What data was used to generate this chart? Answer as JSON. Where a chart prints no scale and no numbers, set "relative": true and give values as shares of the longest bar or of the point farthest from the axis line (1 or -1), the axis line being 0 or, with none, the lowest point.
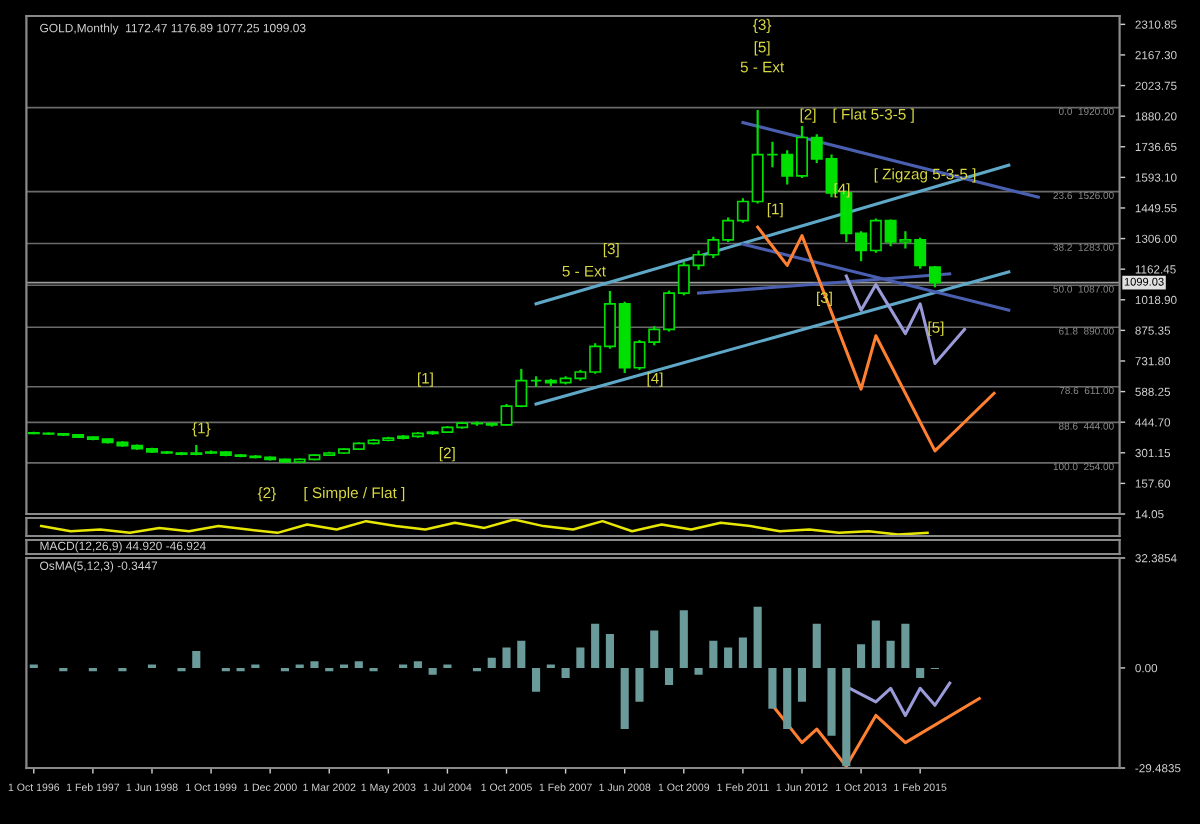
{
  "chart_data": [
    {
      "type": "candlestick",
      "title": "GOLD,Monthly  1172.47 1176.89 1077.25 1099.03",
      "color": "#00e000",
      "categories": [
        null,
        null,
        null,
        null,
        null,
        null,
        null,
        null,
        null,
        null,
        null,
        null,
        null,
        null,
        null,
        null,
        null,
        null,
        null,
        null,
        null,
        null,
        null,
        null,
        null,
        null,
        null,
        null,
        null,
        null,
        null,
        null,
        null,
        null,
        null,
        null,
        null,
        null,
        null,
        null,
        null,
        null,
        null,
        null,
        null,
        null,
        null,
        null,
        null,
        null,
        null,
        null,
        null,
        null,
        null,
        null,
        null,
        null,
        null,
        null,
        null,
        null,
        null,
        null,
        null,
        null,
        null,
        null,
        null,
        null,
        null,
        null,
        null,
        null
      ],
      "ohlc": [
        [
          395,
          400,
          388,
          392
        ],
        [
          392,
          396,
          386,
          390
        ],
        [
          390,
          394,
          380,
          385
        ],
        [
          385,
          388,
          370,
          375
        ],
        [
          375,
          378,
          360,
          365
        ],
        [
          365,
          368,
          345,
          350
        ],
        [
          350,
          355,
          330,
          335
        ],
        [
          335,
          340,
          315,
          320
        ],
        [
          320,
          325,
          300,
          305
        ],
        [
          305,
          310,
          295,
          300
        ],
        [
          300,
          305,
          290,
          295
        ],
        [
          295,
          338,
          290,
          300
        ],
        [
          300,
          312,
          295,
          305
        ],
        [
          305,
          308,
          285,
          290
        ],
        [
          290,
          295,
          280,
          285
        ],
        [
          285,
          290,
          275,
          280
        ],
        [
          280,
          284,
          265,
          270
        ],
        [
          270,
          274,
          254,
          258
        ],
        [
          258,
          275,
          255,
          270
        ],
        [
          270,
          294,
          266,
          290
        ],
        [
          290,
          306,
          286,
          300
        ],
        [
          300,
          322,
          296,
          318
        ],
        [
          318,
          350,
          314,
          345
        ],
        [
          345,
          366,
          340,
          360
        ],
        [
          360,
          376,
          355,
          370
        ],
        [
          370,
          384,
          364,
          378
        ],
        [
          378,
          398,
          372,
          392
        ],
        [
          392,
          404,
          386,
          398
        ],
        [
          398,
          426,
          394,
          420
        ],
        [
          420,
          446,
          414,
          440
        ],
        [
          440,
          448,
          428,
          438
        ],
        [
          438,
          442,
          424,
          432
        ],
        [
          432,
          530,
          428,
          520
        ],
        [
          520,
          694,
          515,
          640
        ],
        [
          640,
          660,
          610,
          640
        ],
        [
          640,
          648,
          615,
          630
        ],
        [
          630,
          660,
          622,
          650
        ],
        [
          650,
          690,
          640,
          680
        ],
        [
          680,
          815,
          672,
          800
        ],
        [
          800,
          1060,
          790,
          1000
        ],
        [
          1000,
          1010,
          675,
          700
        ],
        [
          700,
          830,
          690,
          820
        ],
        [
          820,
          895,
          805,
          880
        ],
        [
          880,
          1062,
          870,
          1050
        ],
        [
          1050,
          1195,
          1040,
          1180
        ],
        [
          1180,
          1250,
          1160,
          1230
        ],
        [
          1230,
          1315,
          1215,
          1300
        ],
        [
          1300,
          1405,
          1290,
          1390
        ],
        [
          1390,
          1495,
          1380,
          1480
        ],
        [
          1480,
          1909,
          1470,
          1700
        ],
        [
          1700,
          1760,
          1640,
          1700
        ],
        [
          1700,
          1720,
          1560,
          1600
        ],
        [
          1600,
          1834,
          1590,
          1780
        ],
        [
          1780,
          1795,
          1660,
          1680
        ],
        [
          1680,
          1700,
          1500,
          1520
        ],
        [
          1520,
          1530,
          1290,
          1330
        ],
        [
          1330,
          1340,
          1200,
          1250
        ],
        [
          1250,
          1400,
          1240,
          1390
        ],
        [
          1390,
          1395,
          1270,
          1290
        ],
        [
          1290,
          1340,
          1260,
          1300
        ],
        [
          1300,
          1310,
          1165,
          1180
        ],
        [
          1172.47,
          1176.89,
          1077.25,
          1099.03
        ],
        null,
        null,
        null,
        null,
        null,
        null,
        null,
        null,
        null,
        null,
        null,
        null
      ],
      "series": [
        {
          "type": "line",
          "color": "#5fa8c8",
          "values": [
            null,
            null,
            null,
            null,
            null,
            null,
            null,
            null,
            null,
            null,
            null,
            null,
            null,
            null,
            null,
            null,
            null,
            null,
            null,
            null,
            null,
            null,
            null,
            null,
            null,
            null,
            null,
            null,
            null,
            null,
            null,
            null,
            null,
            null,
            1000,
            null,
            null,
            null,
            null,
            null,
            null,
            null,
            null,
            null,
            null,
            null,
            null,
            null,
            null,
            null,
            null,
            null,
            null,
            null,
            null,
            null,
            null,
            null,
            null,
            null,
            null,
            null,
            null,
            null,
            null,
            null,
            1650,
            null,
            null,
            null,
            null,
            null,
            null,
            null
          ]
        },
        {
          "type": "line",
          "color": "#5fa8c8",
          "values": [
            null,
            null,
            null,
            null,
            null,
            null,
            null,
            null,
            null,
            null,
            null,
            null,
            null,
            null,
            null,
            null,
            null,
            null,
            null,
            null,
            null,
            null,
            null,
            null,
            null,
            null,
            null,
            null,
            null,
            null,
            null,
            null,
            null,
            null,
            530,
            null,
            null,
            null,
            null,
            null,
            null,
            null,
            null,
            null,
            null,
            null,
            null,
            null,
            null,
            null,
            null,
            null,
            null,
            null,
            null,
            null,
            null,
            null,
            null,
            null,
            null,
            null,
            null,
            null,
            null,
            null,
            1150,
            null,
            null,
            null,
            null,
            null,
            null,
            null
          ]
        },
        {
          "type": "line",
          "color": "#4a5fb0",
          "values": [
            null,
            null,
            null,
            null,
            null,
            null,
            null,
            null,
            null,
            null,
            null,
            null,
            null,
            null,
            null,
            null,
            null,
            null,
            null,
            null,
            null,
            null,
            null,
            null,
            null,
            null,
            null,
            null,
            null,
            null,
            null,
            null,
            null,
            null,
            null,
            null,
            null,
            null,
            null,
            null,
            null,
            null,
            null,
            null,
            null,
            null,
            null,
            null,
            1850,
            null,
            null,
            null,
            null,
            null,
            null,
            null,
            null,
            null,
            null,
            null,
            null,
            null,
            null,
            null,
            null,
            null,
            null,
            null,
            1500,
            null,
            null,
            null,
            null,
            null
          ]
        },
        {
          "type": "line",
          "color": "#4a5fb0",
          "values": [
            null,
            null,
            null,
            null,
            null,
            null,
            null,
            null,
            null,
            null,
            null,
            null,
            null,
            null,
            null,
            null,
            null,
            null,
            null,
            null,
            null,
            null,
            null,
            null,
            null,
            null,
            null,
            null,
            null,
            null,
            null,
            null,
            null,
            null,
            null,
            null,
            null,
            null,
            null,
            null,
            null,
            null,
            null,
            null,
            null,
            null,
            null,
            null,
            1280,
            null,
            null,
            null,
            null,
            null,
            null,
            null,
            null,
            null,
            null,
            null,
            null,
            null,
            null,
            null,
            null,
            null,
            970,
            null,
            null,
            null,
            null,
            null,
            null,
            null
          ]
        },
        {
          "type": "line",
          "color": "#4a5fb0",
          "values": [
            null,
            null,
            null,
            null,
            null,
            null,
            null,
            null,
            null,
            null,
            null,
            null,
            null,
            null,
            null,
            null,
            null,
            null,
            null,
            null,
            null,
            null,
            null,
            null,
            null,
            null,
            null,
            null,
            null,
            null,
            null,
            null,
            null,
            null,
            null,
            null,
            null,
            null,
            null,
            null,
            null,
            null,
            null,
            null,
            null,
            1050,
            null,
            null,
            null,
            null,
            null,
            null,
            null,
            null,
            null,
            null,
            null,
            null,
            null,
            null,
            null,
            null,
            1140,
            null,
            null,
            null,
            null,
            null,
            null,
            null,
            null,
            null,
            null,
            null
          ]
        },
        {
          "type": "line",
          "color": "#ff8030",
          "values": [
            null,
            null,
            null,
            null,
            null,
            null,
            null,
            null,
            null,
            null,
            null,
            null,
            null,
            null,
            null,
            null,
            null,
            null,
            null,
            null,
            null,
            null,
            null,
            null,
            null,
            null,
            null,
            null,
            null,
            null,
            null,
            null,
            null,
            null,
            null,
            null,
            null,
            null,
            null,
            null,
            null,
            null,
            null,
            null,
            null,
            null,
            null,
            null,
            null,
            1360,
            null,
            1180,
            1320,
            null,
            null,
            null,
            600,
            850,
            null,
            null,
            null,
            310,
            null,
            null,
            null,
            580,
            null,
            null,
            null,
            null,
            null,
            null,
            null,
            null
          ]
        },
        {
          "type": "line",
          "color": "#9a9ad8",
          "values": [
            null,
            null,
            null,
            null,
            null,
            null,
            null,
            null,
            null,
            null,
            null,
            null,
            null,
            null,
            null,
            null,
            null,
            null,
            null,
            null,
            null,
            null,
            null,
            null,
            null,
            null,
            null,
            null,
            null,
            null,
            null,
            null,
            null,
            null,
            null,
            null,
            null,
            null,
            null,
            null,
            null,
            null,
            null,
            null,
            null,
            null,
            null,
            null,
            null,
            null,
            null,
            null,
            null,
            null,
            null,
            1130,
            970,
            1090,
            null,
            860,
            1000,
            720,
            null,
            880,
            null,
            null,
            null,
            null,
            null,
            null,
            null,
            null,
            null,
            null
          ]
        }
      ],
      "ylim": [
        14.05,
        2350
      ],
      "yticks": [
        {
          "value": 14.05,
          "label": "14.05"
        },
        {
          "value": 157.6,
          "label": "157.60"
        },
        {
          "value": 301.15,
          "label": "301.15"
        },
        {
          "value": 444.7,
          "label": "444.70"
        },
        {
          "value": 588.25,
          "label": "588.25"
        },
        {
          "value": 731.8,
          "label": "731.80"
        },
        {
          "value": 875.35,
          "label": "875.35"
        },
        {
          "value": 1018.9,
          "label": "1018.90"
        },
        {
          "value": 1162.45,
          "label": "1162.45"
        },
        {
          "value": 1306,
          "label": "1306.00"
        },
        {
          "value": 1449.55,
          "label": "1449.55"
        },
        {
          "value": 1593.1,
          "label": "1593.10"
        },
        {
          "value": 1736.65,
          "label": "1736.65"
        },
        {
          "value": 1880.2,
          "label": "1880.20"
        },
        {
          "value": 2023.75,
          "label": "2023.75"
        },
        {
          "value": 2167.3,
          "label": "2167.30"
        },
        {
          "value": 2310.85,
          "label": "2310.85"
        }
      ],
      "tick_labels": "y",
      "ref_lines": [
        {
          "axis": "y",
          "value": 1920,
          "label": "0.0  1920.00",
          "color": "#6a6a6a"
        },
        {
          "axis": "y",
          "value": 1526,
          "label": "23.6  1526.00",
          "color": "#6a6a6a"
        },
        {
          "axis": "y",
          "value": 1283,
          "label": "38.2  1283.00",
          "color": "#6a6a6a"
        },
        {
          "axis": "y",
          "value": 1087,
          "label": "50.0  1087.00",
          "color": "#6a6a6a"
        },
        {
          "axis": "y",
          "value": 890,
          "label": "61.8  890.00",
          "color": "#6a6a6a"
        },
        {
          "axis": "y",
          "value": 611,
          "label": "78.6  611.00",
          "color": "#6a6a6a"
        },
        {
          "axis": "y",
          "value": 444,
          "label": "88.6  444.00",
          "color": "#6a6a6a"
        },
        {
          "axis": "y",
          "value": 254,
          "label": "100.0  254.00",
          "color": "#6a6a6a"
        },
        {
          "axis": "y",
          "value": 1099.03,
          "label": "1099.03",
          "color": "#9a9a9a"
        }
      ],
      "annotations": [
        "{1}",
        "{2}",
        "[ Simple / Flat ]",
        "[1]",
        "[2]",
        "[3]",
        "5 - Ext",
        "[4]",
        "{3}",
        "[5]",
        "5 - Ext",
        "[1]",
        "[2]",
        "[ Flat 5-3-5 ]",
        "[ Zigzag 5-3-5 ]",
        "[4]",
        "[3]",
        "[5]"
      ]
    },
    {
      "type": "line",
      "relative": true,
      "color": "#e6e600",
      "tick_labels": false,
      "categories": [
        null,
        null,
        null,
        null,
        null,
        null,
        null,
        null,
        null,
        null,
        null,
        null,
        null,
        null,
        null,
        null,
        null,
        null,
        null,
        null,
        null,
        null,
        null,
        null,
        null,
        null,
        null,
        null,
        null,
        null,
        null,
        null,
        null,
        null,
        null,
        null,
        null
      ],
      "values": [
        0.56,
        0.22,
        0.33,
        0.11,
        0.44,
        0.22,
        0.56,
        0.33,
        0.11,
        0.67,
        0.33,
        0.89,
        0.56,
        0.33,
        0.78,
        0.44,
        1,
        0.56,
        0.33,
        0.89,
        0.22,
        0.67,
        0.33,
        0.78,
        0.56,
        0.22,
        0.33,
        0.11,
        0.22,
        0,
        0.11,
        null,
        null,
        null,
        null,
        null,
        null
      ]
    },
    {
      "type": "other",
      "title": "MACD(12,26,9) 44.920 -46.924"
    },
    {
      "type": "bar",
      "title": "OsMA(5,12,3) -0.3447",
      "color": "#6a9a9a",
      "categories": [
        "1 Oct 1996",
        null,
        null,
        null,
        "1 Feb 1997",
        null,
        null,
        null,
        "1 Jun 1998",
        null,
        null,
        null,
        "1 Oct 1999",
        null,
        null,
        null,
        "1 Dec 2000",
        null,
        null,
        null,
        "1 Mar 2002",
        null,
        null,
        null,
        "1 May 2003",
        null,
        null,
        null,
        "1 Jul 2004",
        null,
        null,
        null,
        "1 Oct 2005",
        null,
        null,
        null,
        "1 Feb 2007",
        null,
        null,
        null,
        "1 Jun 2008",
        null,
        null,
        null,
        "1 Oct 2009",
        null,
        null,
        null,
        "1 Feb 2011",
        null,
        null,
        null,
        "1 Jun 2012",
        null,
        null,
        null,
        "1 Oct 2013",
        null,
        null,
        null,
        "1 Feb 2015",
        null,
        null,
        null,
        null,
        null,
        null,
        null,
        null,
        null,
        null,
        null,
        null,
        null
      ],
      "values": [
        1,
        0,
        -1,
        0,
        -1,
        0,
        -1,
        0,
        1,
        0,
        -1,
        5,
        0,
        -1,
        -1,
        1,
        0,
        -1,
        1,
        2,
        -1,
        1,
        2,
        -1,
        0,
        1,
        2,
        -2,
        1,
        0,
        -1,
        3,
        6,
        8,
        -7,
        1,
        -3,
        6,
        13,
        10,
        -18,
        -10,
        11,
        -5,
        17,
        -2,
        8,
        6,
        9,
        18,
        -12,
        -18,
        -10,
        13,
        -20,
        -29,
        7,
        14,
        8,
        13,
        -3,
        -0.3,
        null,
        null,
        null,
        null,
        null,
        null,
        null,
        null,
        null,
        null,
        null,
        null
      ],
      "series": [
        {
          "type": "line",
          "color": "#ff8030",
          "values": [
            null,
            null,
            null,
            null,
            null,
            null,
            null,
            null,
            null,
            null,
            null,
            null,
            null,
            null,
            null,
            null,
            null,
            null,
            null,
            null,
            null,
            null,
            null,
            null,
            null,
            null,
            null,
            null,
            null,
            null,
            null,
            null,
            null,
            null,
            null,
            null,
            null,
            null,
            null,
            null,
            null,
            null,
            null,
            null,
            null,
            null,
            null,
            null,
            null,
            null,
            -11,
            null,
            -22,
            -18,
            null,
            -29,
            null,
            -14,
            null,
            -22,
            null,
            null,
            null,
            null,
            -9,
            null,
            null,
            null,
            null,
            null,
            null,
            null,
            null,
            null
          ]
        },
        {
          "type": "line",
          "color": "#9a9ad8",
          "values": [
            null,
            null,
            null,
            null,
            null,
            null,
            null,
            null,
            null,
            null,
            null,
            null,
            null,
            null,
            null,
            null,
            null,
            null,
            null,
            null,
            null,
            null,
            null,
            null,
            null,
            null,
            null,
            null,
            null,
            null,
            null,
            null,
            null,
            null,
            null,
            null,
            null,
            null,
            null,
            null,
            null,
            null,
            null,
            null,
            null,
            null,
            null,
            null,
            null,
            null,
            null,
            null,
            null,
            null,
            null,
            -5.5,
            null,
            -10,
            -6,
            -14,
            -6,
            -11,
            -4.5,
            null,
            null,
            null,
            null,
            null,
            null,
            null,
            null,
            null,
            null,
            null
          ]
        }
      ],
      "ylim": [
        -29.4835,
        32.3854
      ],
      "yticks": [
        {
          "value": -29.4835,
          "label": "-29.4835"
        },
        {
          "value": 0,
          "label": "0.00"
        },
        {
          "value": 32.3854,
          "label": "32.3854"
        }
      ]
    }
  ]
}
